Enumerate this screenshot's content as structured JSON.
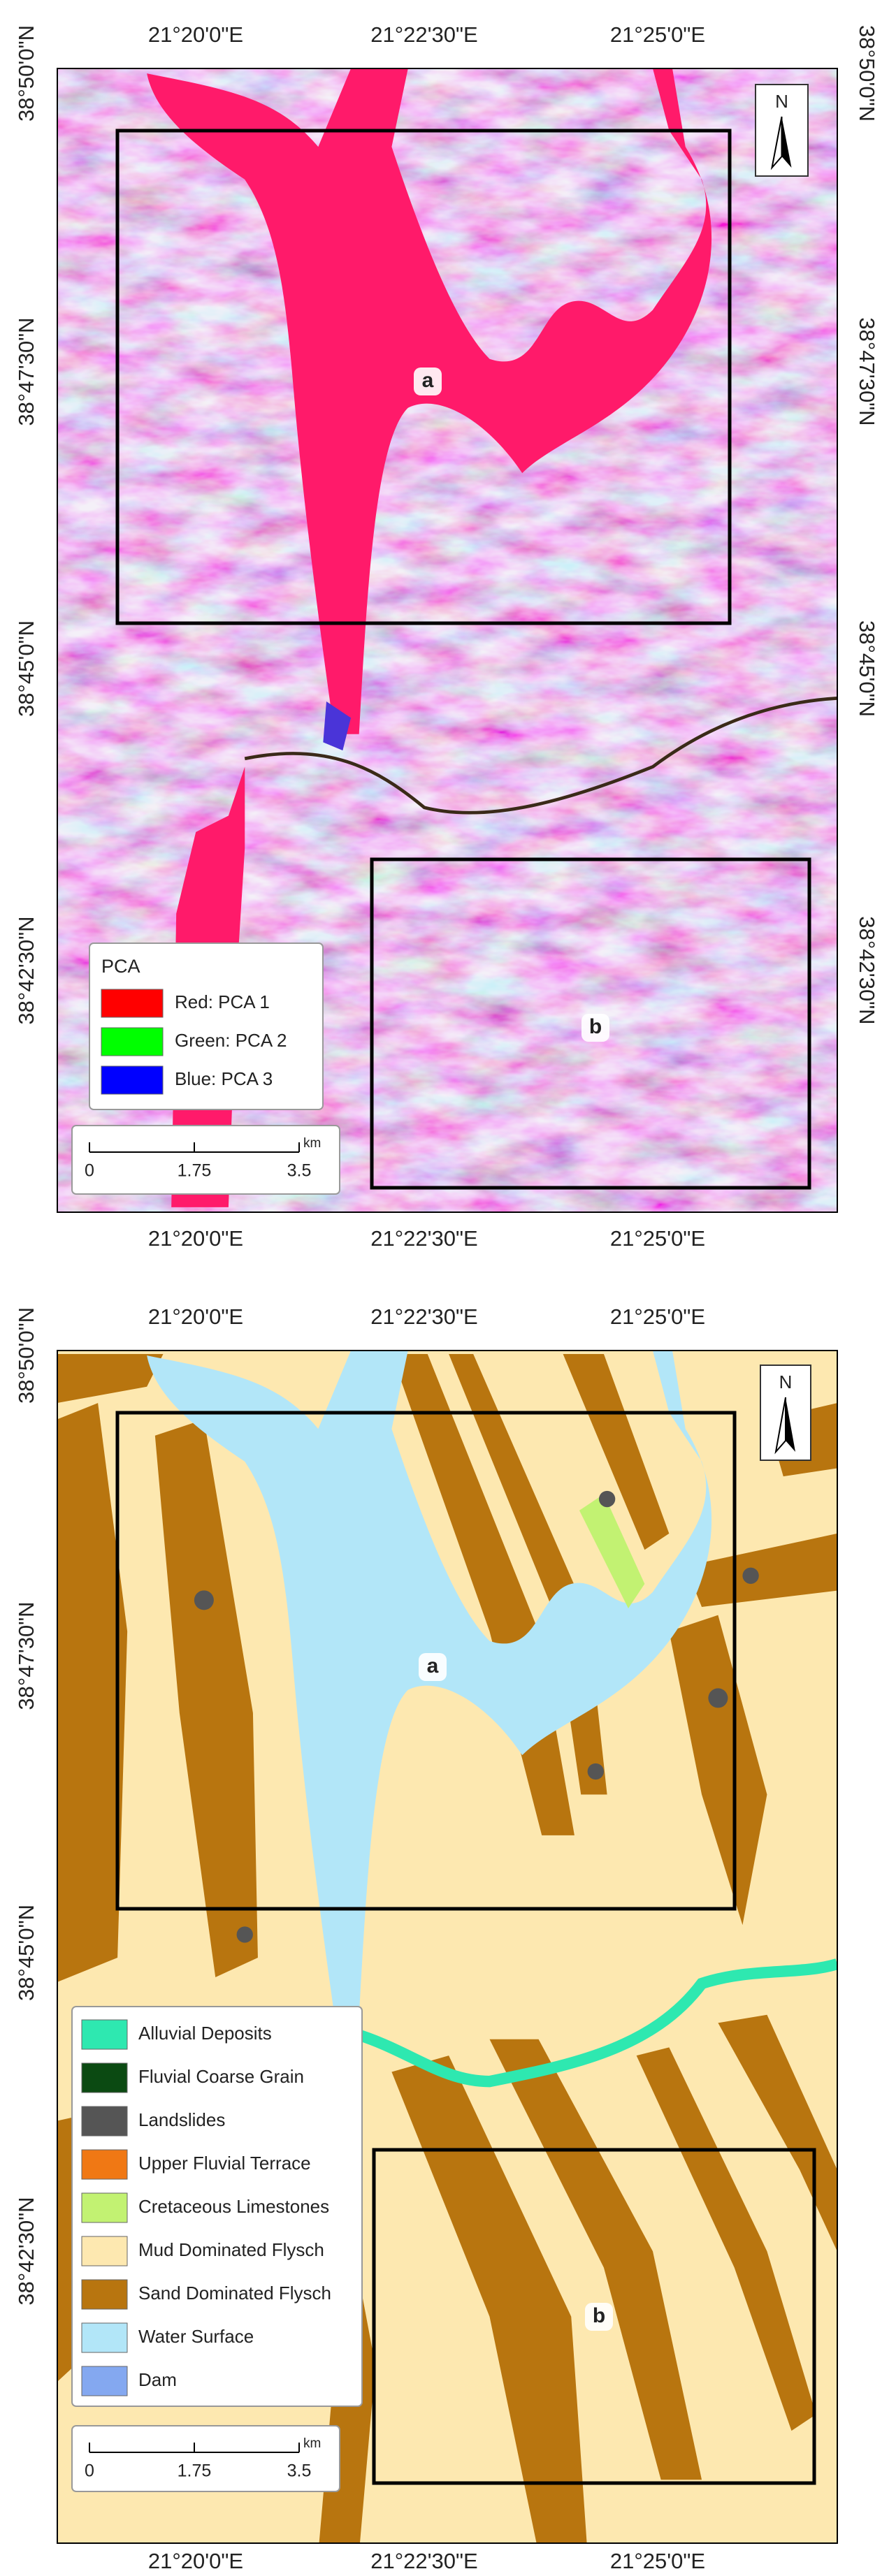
{
  "panels": [
    {
      "top_labels": [
        "21°20'0\"E",
        "21°22'30\"E",
        "21°25'0\"E"
      ],
      "bottom_labels": [
        "21°20'0\"E",
        "21°22'30\"E",
        "21°25'0\"E"
      ],
      "left_labels": [
        "38°50'0\"N",
        "38°47'30\"N",
        "38°45'0\"N",
        "38°42'30\"N"
      ],
      "right_labels": [
        "38°50'0\"N",
        "38°47'30\"N",
        "38°45'0\"N",
        "38°42'30\"N"
      ],
      "north": "N",
      "boxes": [
        "a",
        "b"
      ],
      "legend": {
        "title": "PCA",
        "items": [
          {
            "label": "Red: PCA 1",
            "color": "#ff0000"
          },
          {
            "label": "Green: PCA 2",
            "color": "#00ff00"
          },
          {
            "label": "Blue: PCA 3",
            "color": "#0000ff"
          }
        ]
      },
      "scale": {
        "ticks": [
          "0",
          "1.75",
          "3.5"
        ],
        "unit": "km"
      }
    },
    {
      "top_labels": [
        "21°20'0\"E",
        "21°22'30\"E",
        "21°25'0\"E"
      ],
      "bottom_labels": [
        "21°20'0\"E",
        "21°22'30\"E",
        "21°25'0\"E"
      ],
      "left_labels": [
        "38°50'0\"N",
        "38°47'30\"N",
        "38°45'0\"N",
        "38°42'30\"N"
      ],
      "north": "N",
      "boxes": [
        "a",
        "b"
      ],
      "legend": {
        "items": [
          {
            "label": "Alluvial Deposits",
            "color": "#2ee8b0"
          },
          {
            "label": "Fluvial Coarse Grain",
            "color": "#0b4a12"
          },
          {
            "label": "Landslides",
            "color": "#555555"
          },
          {
            "label": "Upper Fluvial Terrace",
            "color": "#f07814"
          },
          {
            "label": "Cretaceous Limestones",
            "color": "#c2f272"
          },
          {
            "label": "Mud Dominated Flysch",
            "color": "#fde8b0"
          },
          {
            "label": "Sand Dominated Flysch",
            "color": "#b8750f"
          },
          {
            "label": "Water Surface",
            "color": "#b2e6f8"
          },
          {
            "label": "Dam",
            "color": "#84a8f0"
          }
        ]
      },
      "scale": {
        "ticks": [
          "0",
          "1.75",
          "3.5"
        ],
        "unit": "km"
      }
    }
  ]
}
